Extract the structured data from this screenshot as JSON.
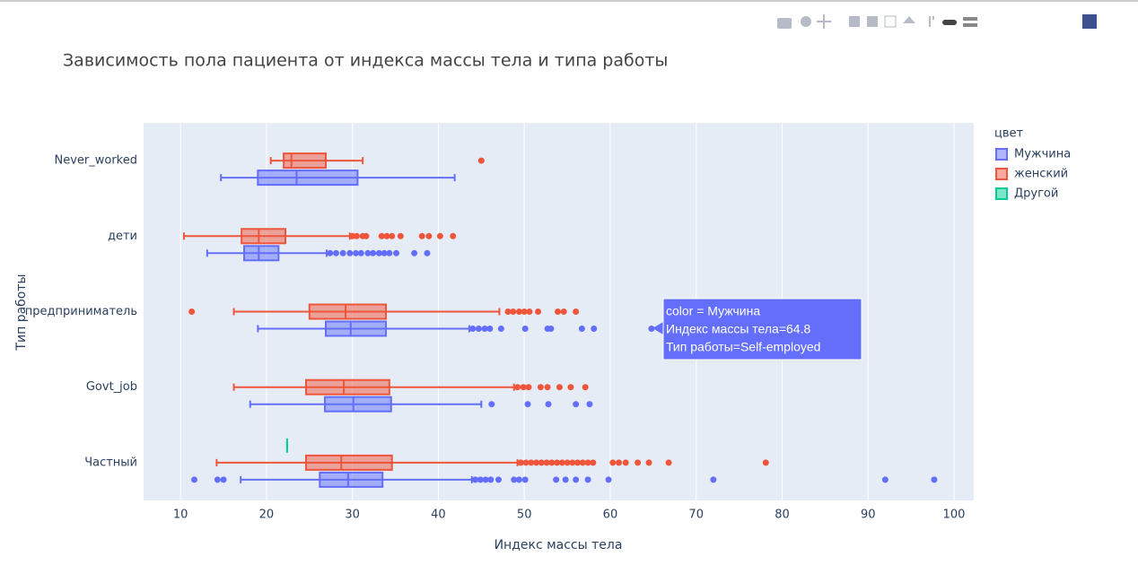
{
  "chart_data": {
    "type": "box",
    "orientation": "h",
    "title": "Зависимость пола пациента от индекса массы тела и типа работы",
    "xlabel": "Индекс массы тела",
    "ylabel": "Тип работы",
    "legend_title": "цвет",
    "xlim": [
      5.7,
      102.3
    ],
    "xticks": [
      10,
      20,
      30,
      40,
      50,
      60,
      70,
      80,
      90,
      100
    ],
    "grid": true,
    "categories": [
      "Частный",
      "Govt_job",
      "предприниматель",
      "дети",
      "Never_worked"
    ],
    "series": [
      {
        "name": "Мужчина",
        "color": "#636efa",
        "boxes": [
          {
            "min": 17.0,
            "q1": 26.2,
            "median": 29.5,
            "q3": 33.5,
            "max": 43.9,
            "outliers": [
              11.6,
              14.3,
              15.0,
              44.3,
              44.9,
              45.5,
              46.1,
              47.0,
              48.8,
              49.4,
              50.1,
              53.7,
              54.8,
              56.0,
              57.4,
              59.8,
              72.0,
              92.0,
              97.7
            ]
          },
          {
            "min": 18.1,
            "q1": 26.8,
            "median": 30.1,
            "q3": 34.5,
            "max": 45.0,
            "outliers": [
              46.2,
              50.4,
              52.8,
              56.0,
              57.6
            ]
          },
          {
            "min": 19.0,
            "q1": 26.9,
            "median": 29.8,
            "q3": 33.9,
            "max": 43.6,
            "outliers": [
              44.0,
              44.7,
              45.4,
              46.0,
              47.3,
              50.1,
              52.7,
              53.1,
              56.7,
              58.1,
              64.8
            ]
          },
          {
            "min": 13.1,
            "q1": 17.4,
            "median": 19.1,
            "q3": 21.4,
            "max": 27.0,
            "outliers": [
              27.4,
              28.1,
              28.9,
              29.7,
              30.4,
              31.0,
              31.8,
              32.4,
              33.1,
              33.7,
              34.3,
              35.1,
              37.2,
              38.7
            ]
          },
          {
            "min": 14.7,
            "q1": 19.0,
            "median": 23.5,
            "q3": 30.6,
            "max": 41.9,
            "outliers": []
          }
        ]
      },
      {
        "name": "женский",
        "color": "#ef553b",
        "boxes": [
          {
            "min": 14.2,
            "q1": 24.6,
            "median": 28.7,
            "q3": 34.6,
            "max": 49.2,
            "outliers": [
              49.6,
              50.2,
              50.8,
              51.4,
              52.0,
              52.6,
              53.2,
              53.8,
              54.4,
              55.0,
              55.6,
              56.2,
              56.8,
              57.4,
              58.0,
              60.3,
              61.0,
              61.8,
              63.2,
              64.5,
              66.8,
              78.1
            ]
          },
          {
            "min": 16.2,
            "q1": 24.6,
            "median": 29.0,
            "q3": 34.3,
            "max": 48.8,
            "outliers": [
              49.2,
              49.9,
              50.5,
              51.9,
              52.7,
              54.1,
              55.4,
              57.1
            ]
          },
          {
            "min": 16.2,
            "q1": 25.0,
            "median": 29.2,
            "q3": 33.9,
            "max": 47.1,
            "outliers": [
              11.3,
              48.1,
              48.7,
              49.4,
              50.0,
              50.6,
              51.6,
              53.9,
              54.6,
              56.0
            ]
          },
          {
            "min": 10.4,
            "q1": 17.1,
            "median": 19.1,
            "q3": 22.2,
            "max": 29.7,
            "outliers": [
              30.0,
              30.5,
              31.2,
              31.6,
              33.4,
              34.0,
              34.6,
              35.6,
              38.1,
              38.9,
              40.2,
              41.7
            ]
          },
          {
            "min": 20.5,
            "q1": 22.0,
            "median": 22.9,
            "q3": 26.9,
            "max": 31.2,
            "outliers": [
              45.0
            ]
          }
        ]
      },
      {
        "name": "Другой",
        "color": "#00cc96",
        "boxes": [
          {
            "min": 22.4,
            "q1": 22.4,
            "median": 22.4,
            "q3": 22.4,
            "max": 22.4,
            "outliers": []
          },
          null,
          null,
          null,
          null
        ]
      }
    ],
    "hover": [
      "color = Мужчина",
      "Индекс массы тела=64.8",
      "Тип работы=Self-employed"
    ]
  }
}
